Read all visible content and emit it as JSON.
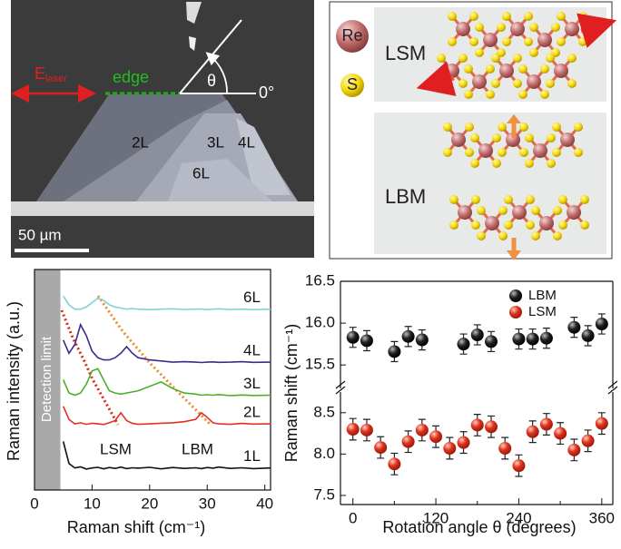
{
  "image_panel": {
    "e_main": "E",
    "e_sub": "laser",
    "edge": "edge",
    "theta": "θ",
    "zero": "0°",
    "layers": [
      "2L",
      "3L",
      "4L",
      "6L"
    ],
    "scale": "50 µm"
  },
  "schematic_panel": {
    "re": "Re",
    "s": "S",
    "lsm": "LSM",
    "lbm": "LBM"
  },
  "chart_data": [
    {
      "type": "line",
      "xlabel": "Raman shift (cm⁻¹)",
      "ylabel": "Raman intensity (a.u.)",
      "xlim": [
        0,
        41
      ],
      "xticks": [
        0,
        10,
        20,
        30,
        40
      ],
      "ylim": [
        0,
        100
      ],
      "detection_limit": {
        "label": "Detection limit",
        "x": 4.5
      },
      "annotations": [
        "LSM",
        "LBM"
      ],
      "x": [
        5,
        6,
        7,
        8,
        9,
        10,
        11,
        12,
        13,
        14,
        15,
        16,
        17,
        18,
        20,
        22,
        24,
        26,
        28,
        29,
        30,
        31,
        32,
        34,
        36,
        38,
        41
      ],
      "series": [
        {
          "name": "6L",
          "color": "#7fd3d6",
          "values": [
            88,
            84,
            82,
            82,
            83,
            85,
            87,
            86,
            84,
            83,
            82.5,
            82,
            82.3,
            82,
            81.8,
            82,
            82.2,
            81.9,
            82,
            82.1,
            81.8,
            82,
            82.2,
            81.9,
            82,
            81.8,
            82
          ]
        },
        {
          "name": "4L",
          "color": "#3f2a8c",
          "values": [
            68,
            62,
            66,
            75,
            70,
            63,
            60,
            59,
            59,
            60,
            62,
            65,
            62,
            60,
            59,
            58.5,
            58,
            58.2,
            58,
            57.8,
            58,
            58.1,
            57.9,
            58,
            58.2,
            57.9,
            58
          ]
        },
        {
          "name": "3L",
          "color": "#4caf2a",
          "values": [
            50,
            44,
            43,
            44,
            48,
            54,
            55,
            50,
            45,
            44,
            43.5,
            44,
            44.5,
            45,
            47,
            49,
            46,
            44,
            43.5,
            43,
            43.2,
            43,
            43.3,
            42.8,
            43.1,
            42.9,
            43
          ]
        },
        {
          "name": "2L",
          "color": "#e0321e",
          "values": [
            38,
            32,
            30,
            30.5,
            29.8,
            30.3,
            30,
            29.7,
            30.5,
            31.5,
            35,
            31.5,
            30.2,
            29.8,
            30,
            30.3,
            30.5,
            31,
            32,
            35,
            33,
            30.5,
            30,
            29.8,
            30.2,
            29.9,
            30
          ]
        },
        {
          "name": "1L",
          "color": "#111111",
          "values": [
            22,
            12,
            10,
            10.5,
            9.5,
            10,
            10.3,
            9.6,
            10.2,
            9.8,
            10.4,
            9.7,
            10.1,
            9.9,
            10.3,
            9.6,
            10.2,
            9.8,
            10.1,
            9.7,
            10.2,
            9.9,
            10.4,
            9.8,
            10.1,
            9.7,
            10
          ]
        }
      ]
    },
    {
      "type": "scatter",
      "xlabel": "Rotation angle θ (degrees)",
      "ylabel": "Raman shift (cm⁻¹)",
      "xlim": [
        -18,
        376
      ],
      "xticks": [
        0,
        120,
        240,
        360
      ],
      "xminorticks": [
        60,
        180,
        300
      ],
      "ylim": [
        7.39,
        8.75
      ],
      "yticks": [
        {
          "value": 7.5,
          "label": "7.5"
        },
        {
          "value": 8,
          "label": "8.0"
        },
        {
          "value": 8.5,
          "label": "8.5"
        }
      ],
      "y2lim": [
        15.22,
        16.5
      ],
      "y2ticks": [
        {
          "value": 15.5,
          "label": "15.5"
        },
        {
          "value": 16,
          "label": "16.0"
        },
        {
          "value": 16.5,
          "label": "16.5"
        }
      ],
      "series": [
        {
          "name": "LBM",
          "color": "#111111",
          "axis": "y2",
          "x": [
            0,
            20,
            60,
            80,
            100,
            160,
            180,
            200,
            240,
            260,
            280,
            320,
            340,
            360
          ],
          "values": [
            15.83,
            15.79,
            15.66,
            15.84,
            15.8,
            15.75,
            15.86,
            15.78,
            15.81,
            15.81,
            15.82,
            15.95,
            15.85,
            15.99
          ],
          "errors": [
            0.12,
            0.12,
            0.12,
            0.12,
            0.12,
            0.12,
            0.12,
            0.12,
            0.12,
            0.12,
            0.12,
            0.12,
            0.12,
            0.12
          ]
        },
        {
          "name": "LSM",
          "color": "#e0321e",
          "x": [
            0,
            20,
            40,
            60,
            80,
            100,
            120,
            140,
            160,
            180,
            200,
            220,
            240,
            260,
            280,
            300,
            320,
            340,
            360
          ],
          "values": [
            8.3,
            8.29,
            8.08,
            7.88,
            8.15,
            8.29,
            8.21,
            8.07,
            8.14,
            8.35,
            8.33,
            8.07,
            7.86,
            8.27,
            8.36,
            8.25,
            8.05,
            8.16,
            8.37
          ],
          "errors": [
            0.13,
            0.13,
            0.13,
            0.13,
            0.13,
            0.13,
            0.13,
            0.13,
            0.13,
            0.13,
            0.13,
            0.13,
            0.13,
            0.13,
            0.13,
            0.13,
            0.13,
            0.13,
            0.13
          ]
        }
      ]
    }
  ]
}
